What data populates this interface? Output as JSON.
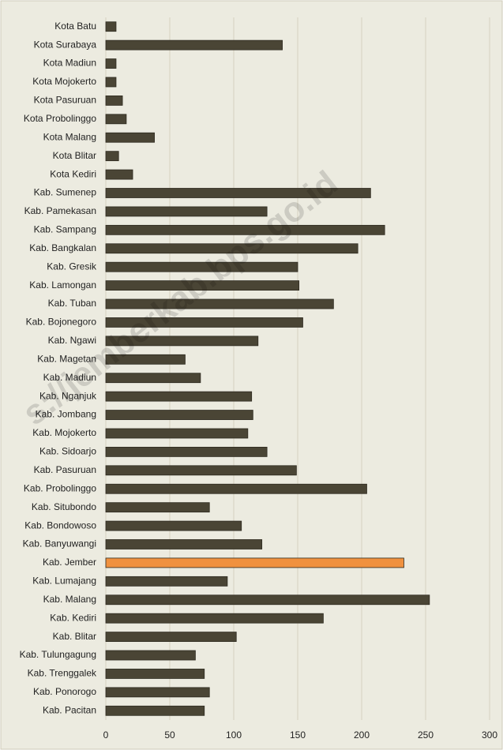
{
  "chart_data": {
    "type": "bar",
    "orientation": "horizontal",
    "categories": [
      "Kota Batu",
      "Kota Surabaya",
      "Kota Madiun",
      "Kota Mojokerto",
      "Kota Pasuruan",
      "Kota Probolinggo",
      "Kota Malang",
      "Kota Blitar",
      "Kota Kediri",
      "Kab. Sumenep",
      "Kab. Pamekasan",
      "Kab. Sampang",
      "Kab. Bangkalan",
      "Kab. Gresik",
      "Kab. Lamongan",
      "Kab. Tuban",
      "Kab. Bojonegoro",
      "Kab. Ngawi",
      "Kab. Magetan",
      "Kab. Madiun",
      "Kab. Nganjuk",
      "Kab. Jombang",
      "Kab. Mojokerto",
      "Kab. Sidoarjo",
      "Kab. Pasuruan",
      "Kab. Probolinggo",
      "Kab. Situbondo",
      "Kab. Bondowoso",
      "Kab. Banyuwangi",
      "Kab. Jember",
      "Kab. Lumajang",
      "Kab. Malang",
      "Kab. Kediri",
      "Kab. Blitar",
      "Kab. Tulungagung",
      "Kab. Trenggalek",
      "Kab. Ponorogo",
      "Kab. Pacitan"
    ],
    "values": [
      8,
      138,
      8,
      8,
      13,
      16,
      38,
      10,
      21,
      207,
      126,
      218,
      197,
      150,
      151,
      178,
      154,
      119,
      62,
      74,
      114,
      115,
      111,
      126,
      149,
      204,
      81,
      106,
      122,
      233,
      95,
      253,
      170,
      102,
      70,
      77,
      81,
      77
    ],
    "colors": [
      "#4a4535",
      "#4a4535",
      "#4a4535",
      "#4a4535",
      "#4a4535",
      "#4a4535",
      "#4a4535",
      "#4a4535",
      "#4a4535",
      "#4a4535",
      "#4a4535",
      "#4a4535",
      "#4a4535",
      "#4a4535",
      "#4a4535",
      "#4a4535",
      "#4a4535",
      "#4a4535",
      "#4a4535",
      "#4a4535",
      "#4a4535",
      "#4a4535",
      "#4a4535",
      "#4a4535",
      "#4a4535",
      "#4a4535",
      "#4a4535",
      "#4a4535",
      "#4a4535",
      "#f0913f",
      "#4a4535",
      "#4a4535",
      "#4a4535",
      "#4a4535",
      "#4a4535",
      "#4a4535",
      "#4a4535",
      "#4a4535"
    ],
    "xlim": [
      0,
      300
    ],
    "xticks": [
      0,
      50,
      100,
      150,
      200,
      250,
      300
    ],
    "grid": true,
    "watermark": "s://jemberkab.bps.go.id"
  }
}
